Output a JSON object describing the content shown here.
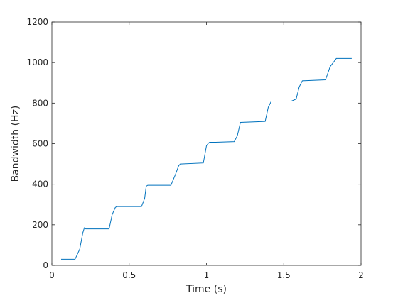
{
  "chart_data": {
    "type": "line",
    "title": "",
    "xlabel": "Time (s)",
    "ylabel": "Bandwidth (Hz)",
    "xlim": [
      0,
      2
    ],
    "ylim": [
      0,
      1200
    ],
    "xticks": [
      0,
      0.5,
      1,
      1.5,
      2
    ],
    "xtick_labels": [
      "0",
      "0.5",
      "1",
      "1.5",
      "2"
    ],
    "yticks": [
      0,
      200,
      400,
      600,
      800,
      1000,
      1200
    ],
    "ytick_labels": [
      "0",
      "200",
      "400",
      "600",
      "800",
      "1000",
      "1200"
    ],
    "grid": false,
    "legend": "none",
    "line_color": "#0072BD",
    "series": [
      {
        "x": [
          0.06,
          0.15,
          0.18,
          0.2,
          0.21,
          0.22,
          0.37,
          0.39,
          0.41,
          0.42,
          0.58,
          0.6,
          0.61,
          0.62,
          0.77,
          0.8,
          0.82,
          0.83,
          0.98,
          1.0,
          1.01,
          1.02,
          1.06,
          1.18,
          1.2,
          1.22,
          1.38,
          1.4,
          1.42,
          1.55,
          1.58,
          1.6,
          1.62,
          1.77,
          1.8,
          1.82,
          1.84,
          1.94
        ],
        "y": [
          30,
          30,
          80,
          160,
          185,
          180,
          180,
          250,
          285,
          290,
          290,
          330,
          390,
          395,
          395,
          450,
          490,
          500,
          505,
          590,
          600,
          607,
          607,
          610,
          640,
          705,
          710,
          780,
          810,
          810,
          820,
          880,
          910,
          915,
          980,
          1000,
          1020,
          1020
        ]
      }
    ]
  }
}
